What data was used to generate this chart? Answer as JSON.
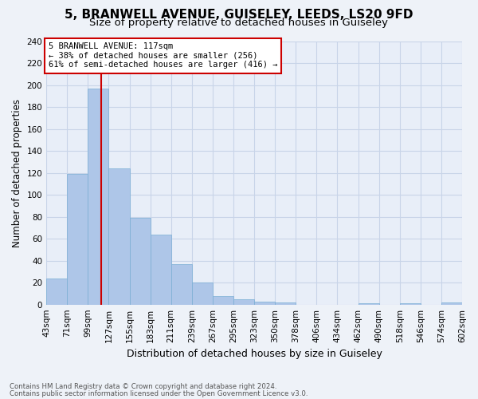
{
  "title": "5, BRANWELL AVENUE, GUISELEY, LEEDS, LS20 9FD",
  "subtitle": "Size of property relative to detached houses in Guiseley",
  "xlabel": "Distribution of detached houses by size in Guiseley",
  "ylabel": "Number of detached properties",
  "bar_labels": [
    "43sqm",
    "71sqm",
    "99sqm",
    "127sqm",
    "155sqm",
    "183sqm",
    "211sqm",
    "239sqm",
    "267sqm",
    "295sqm",
    "323sqm",
    "350sqm",
    "378sqm",
    "406sqm",
    "434sqm",
    "462sqm",
    "490sqm",
    "518sqm",
    "546sqm",
    "574sqm",
    "602sqm"
  ],
  "bar_heights": [
    24,
    119,
    197,
    124,
    79,
    64,
    37,
    20,
    8,
    5,
    3,
    2,
    0,
    0,
    0,
    1,
    0,
    1,
    0,
    2
  ],
  "bar_color": "#aec6e8",
  "bar_edge_color": "#7aaed4",
  "annotation_title": "5 BRANWELL AVENUE: 117sqm",
  "annotation_line1": "← 38% of detached houses are smaller (256)",
  "annotation_line2": "61% of semi-detached houses are larger (416) →",
  "annotation_box_color": "#ffffff",
  "annotation_border_color": "#cc0000",
  "red_line_color": "#cc0000",
  "red_line_x": 2.64,
  "ylim": [
    0,
    240
  ],
  "yticks": [
    0,
    20,
    40,
    60,
    80,
    100,
    120,
    140,
    160,
    180,
    200,
    220,
    240
  ],
  "grid_color": "#c8d4e8",
  "background_color": "#e8eef8",
  "fig_background": "#eef2f8",
  "footer_line1": "Contains HM Land Registry data © Crown copyright and database right 2024.",
  "footer_line2": "Contains public sector information licensed under the Open Government Licence v3.0.",
  "title_fontsize": 11,
  "subtitle_fontsize": 9.5,
  "xlabel_fontsize": 9,
  "ylabel_fontsize": 8.5,
  "tick_fontsize": 7.5,
  "annotation_fontsize": 7.5,
  "footer_fontsize": 6.2
}
